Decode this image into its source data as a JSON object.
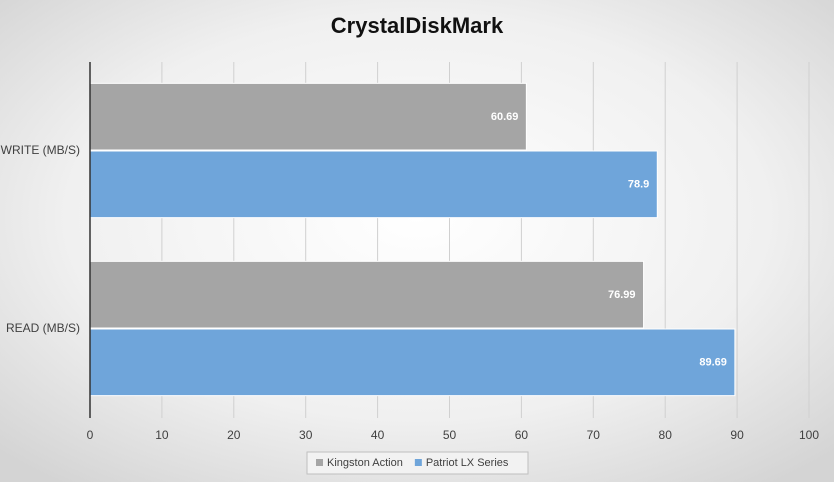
{
  "chart_data": {
    "type": "hbar",
    "title": "CrystalDiskMark",
    "categories": [
      "WRITE (MB/S)",
      "READ (MB/S)"
    ],
    "series": [
      {
        "name": "Kingston Action",
        "color": "#a5a5a5",
        "values": [
          60.69,
          76.99
        ]
      },
      {
        "name": "Patriot LX Series",
        "color": "#6fa5da",
        "values": [
          78.9,
          89.69
        ]
      }
    ],
    "xlim": [
      0,
      100
    ],
    "xticks": [
      0,
      10,
      20,
      30,
      40,
      50,
      60,
      70,
      80,
      90,
      100
    ],
    "grid": true,
    "legend": "bottom"
  }
}
